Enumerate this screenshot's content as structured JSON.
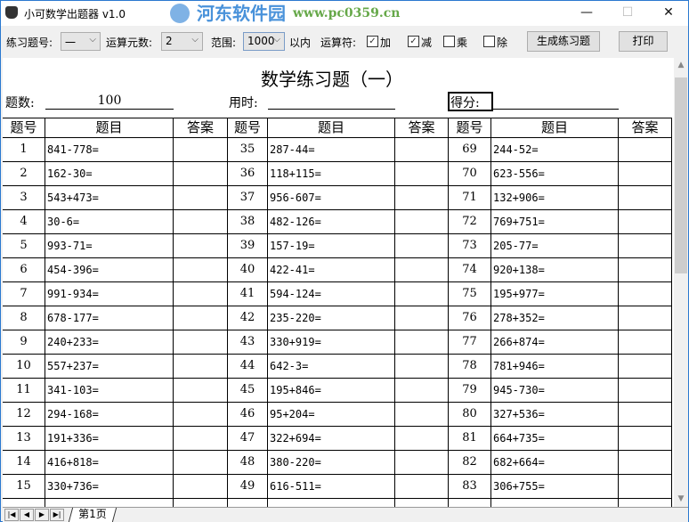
{
  "window": {
    "title": "小可数学出题器 v1.0",
    "minimize": "—",
    "maximize": "☐",
    "close": "✕"
  },
  "watermark": {
    "line1": "河东软件园",
    "line2": "www.pc0359.cn"
  },
  "toolbar": {
    "practice_label": "练习题号:",
    "practice_value": "一",
    "operands_label": "运算元数:",
    "operands_value": "2",
    "range_label": "范围:",
    "range_value": "1000",
    "range_suffix": "以内",
    "operators_label": "运算符:",
    "operators": [
      {
        "label": "加",
        "checked": true
      },
      {
        "label": "减",
        "checked": true
      },
      {
        "label": "乘",
        "checked": false
      },
      {
        "label": "除",
        "checked": false
      }
    ],
    "generate_button": "生成练习题",
    "print_button": "打印"
  },
  "sheet": {
    "title": "数学练习题（一）",
    "count_label": "题数:",
    "count_value": "100",
    "time_label": "用时:",
    "score_label": "得分:",
    "headers": [
      "题号",
      "题目",
      "答案",
      "题号",
      "题目",
      "答案",
      "题号",
      "题目",
      "答案"
    ],
    "rows": [
      [
        "1",
        "841-778=",
        "35",
        "287-44=",
        "69",
        "244-52="
      ],
      [
        "2",
        "162-30=",
        "36",
        "118+115=",
        "70",
        "623-556="
      ],
      [
        "3",
        "543+473=",
        "37",
        "956-607=",
        "71",
        "132+906="
      ],
      [
        "4",
        "30-6=",
        "38",
        "482-126=",
        "72",
        "769+751="
      ],
      [
        "5",
        "993-71=",
        "39",
        "157-19=",
        "73",
        "205-77="
      ],
      [
        "6",
        "454-396=",
        "40",
        "422-41=",
        "74",
        "920+138="
      ],
      [
        "7",
        "991-934=",
        "41",
        "594-124=",
        "75",
        "195+977="
      ],
      [
        "8",
        "678-177=",
        "42",
        "235-220=",
        "76",
        "278+352="
      ],
      [
        "9",
        "240+233=",
        "43",
        "330+919=",
        "77",
        "266+874="
      ],
      [
        "10",
        "557+237=",
        "44",
        "642-3=",
        "78",
        "781+946="
      ],
      [
        "11",
        "341-103=",
        "45",
        "195+846=",
        "79",
        "945-730="
      ],
      [
        "12",
        "294-168=",
        "46",
        "95+204=",
        "80",
        "327+536="
      ],
      [
        "13",
        "191+336=",
        "47",
        "322+694=",
        "81",
        "664+735="
      ],
      [
        "14",
        "416+818=",
        "48",
        "380-220=",
        "82",
        "682+664="
      ],
      [
        "15",
        "330+736=",
        "49",
        "616-511=",
        "83",
        "306+755="
      ]
    ]
  },
  "sheet_tabs": {
    "nav": [
      "|◀",
      "◀",
      "▶",
      "▶|"
    ],
    "active": "第1页"
  }
}
